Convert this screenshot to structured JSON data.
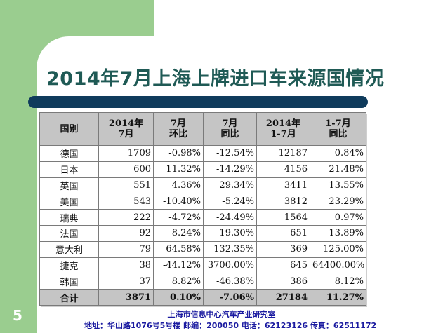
{
  "slide": {
    "title": "2014年7月上海上牌进口车来源国情况",
    "page_number": "5",
    "footer_org": "上海市信息中心汽车产业研究室",
    "footer_contact": "地址：华山路1076号5号楼  邮编：200050 电话：62123126 传真：62511172"
  },
  "table": {
    "headers": [
      [
        "国别"
      ],
      [
        "2014年",
        "7月"
      ],
      [
        "7月",
        "环比"
      ],
      [
        "7月",
        "同比"
      ],
      [
        "2014年",
        "1-7月"
      ],
      [
        "1-7月",
        "同比"
      ]
    ],
    "rows": [
      [
        "德国",
        "1709",
        "-0.98%",
        "-12.54%",
        "12187",
        "0.84%"
      ],
      [
        "日本",
        "600",
        "11.32%",
        "-14.29%",
        "4156",
        "21.48%"
      ],
      [
        "英国",
        "551",
        "4.36%",
        "29.34%",
        "3411",
        "13.55%"
      ],
      [
        "美国",
        "543",
        "-10.40%",
        "-5.24%",
        "3812",
        "23.29%"
      ],
      [
        "瑞典",
        "222",
        "-4.72%",
        "-24.49%",
        "1564",
        "0.97%"
      ],
      [
        "法国",
        "92",
        "8.24%",
        "-19.30%",
        "651",
        "-13.89%"
      ],
      [
        "意大利",
        "79",
        "64.58%",
        "132.35%",
        "369",
        "125.00%"
      ],
      [
        "捷克",
        "38",
        "-44.12%",
        "3700.00%",
        "645",
        "64400.00%"
      ],
      [
        "韩国",
        "37",
        "8.82%",
        "-46.38%",
        "386",
        "8.12%"
      ]
    ],
    "total": [
      "合计",
      "3871",
      "0.10%",
      "-7.06%",
      "27184",
      "11.27%"
    ]
  }
}
